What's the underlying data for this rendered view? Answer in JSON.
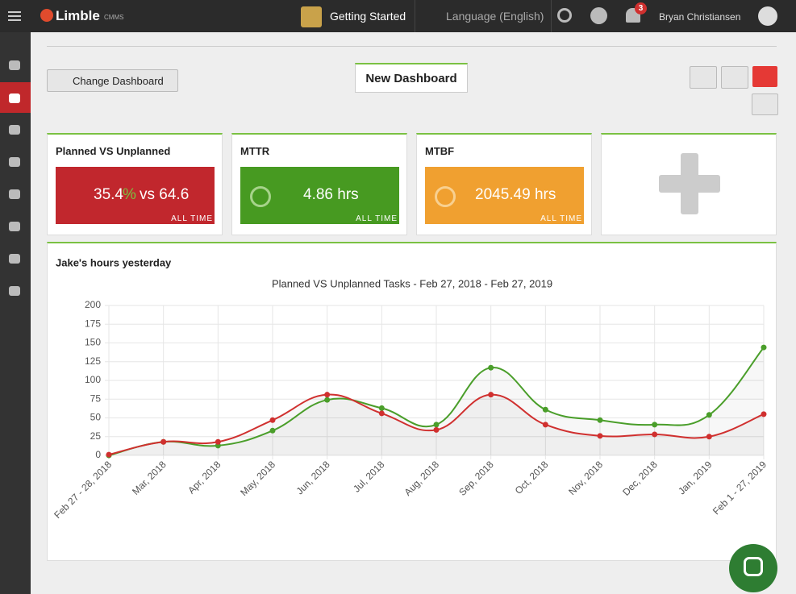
{
  "header": {
    "brand": "Limble",
    "brand_suffix": "CMMS",
    "getting_started": "Getting Started",
    "language": "Language (English)",
    "notifications": "3",
    "user": "Bryan Christiansen"
  },
  "toolbar": {
    "change_dashboard": "Change Dashboard",
    "dashboard_name": "New Dashboard"
  },
  "widgets": [
    {
      "title": "Planned VS Unplanned",
      "value": "35.4",
      "unit": "%",
      "suffix": "vs 64.6",
      "footer": "ALL TIME"
    },
    {
      "title": "MTTR",
      "value": "4.86 hrs",
      "footer": "ALL TIME"
    },
    {
      "title": "MTBF",
      "value": "2045.49 hrs",
      "footer": "ALL TIME"
    }
  ],
  "chart_data": {
    "type": "line",
    "panel_title": "Jake's hours yesterday",
    "title": "Planned VS Unplanned Tasks - Feb 27, 2018 - Feb 27, 2019",
    "categories": [
      "Feb 27 - 28, 2018",
      "Mar, 2018",
      "Apr, 2018",
      "May, 2018",
      "Jun, 2018",
      "Jul, 2018",
      "Aug, 2018",
      "Sep, 2018",
      "Oct, 2018",
      "Nov, 2018",
      "Dec, 2018",
      "Jan, 2019",
      "Feb 1 - 27, 2019"
    ],
    "series": [
      {
        "color": "#4a9e2a",
        "values": [
          0,
          18,
          13,
          33,
          74,
          63,
          41,
          117,
          61,
          47,
          41,
          54,
          144
        ]
      },
      {
        "color": "#d0302f",
        "values": [
          1,
          18,
          18,
          47,
          81,
          56,
          34,
          81,
          41,
          26,
          28,
          25,
          55
        ]
      }
    ],
    "ylim": [
      0,
      200
    ],
    "yticks": [
      0,
      25,
      50,
      75,
      100,
      125,
      150,
      175,
      200
    ],
    "grid": true
  }
}
